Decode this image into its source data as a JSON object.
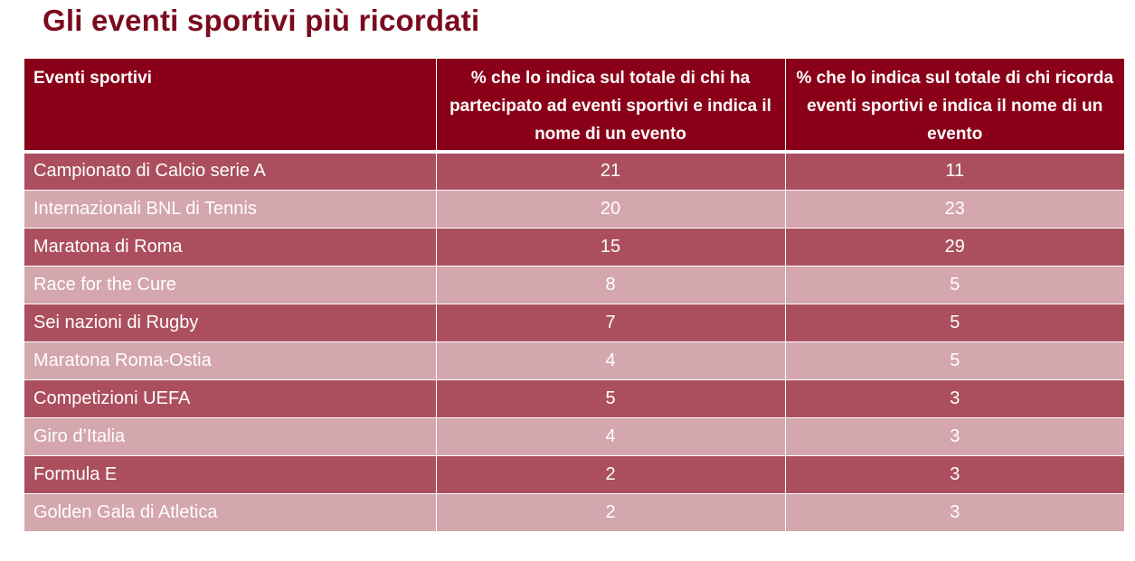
{
  "title": "Gli eventi sportivi più ricordati",
  "table": {
    "headers": [
      "Eventi sportivi",
      "% che lo indica sul totale di chi ha partecipato ad eventi sportivi e indica il nome di un evento",
      "% che lo indica sul totale di chi ricorda eventi sportivi e indica il nome di un evento"
    ],
    "rows": [
      {
        "event": "Campionato di Calcio serie A",
        "pct_participated": "21",
        "pct_remember": "11"
      },
      {
        "event": "Internazionali BNL di Tennis",
        "pct_participated": "20",
        "pct_remember": "23"
      },
      {
        "event": "Maratona di Roma",
        "pct_participated": "15",
        "pct_remember": "29"
      },
      {
        "event": "Race for the Cure",
        "pct_participated": "8",
        "pct_remember": "5"
      },
      {
        "event": "Sei nazioni di Rugby",
        "pct_participated": "7",
        "pct_remember": "5"
      },
      {
        "event": "Maratona Roma-Ostia",
        "pct_participated": "4",
        "pct_remember": "5"
      },
      {
        "event": "Competizioni UEFA",
        "pct_participated": "5",
        "pct_remember": "3"
      },
      {
        "event": "Giro d’Italia",
        "pct_participated": "4",
        "pct_remember": "3"
      },
      {
        "event": "Formula E",
        "pct_participated": "2",
        "pct_remember": "3"
      },
      {
        "event": "Golden Gala di Atletica",
        "pct_participated": "2",
        "pct_remember": "3"
      }
    ]
  },
  "colors": {
    "title": "#7a0a1d",
    "header_bg": "#8a0019",
    "row_dark": "#ab4f5e",
    "row_light": "#d4a6ad"
  }
}
